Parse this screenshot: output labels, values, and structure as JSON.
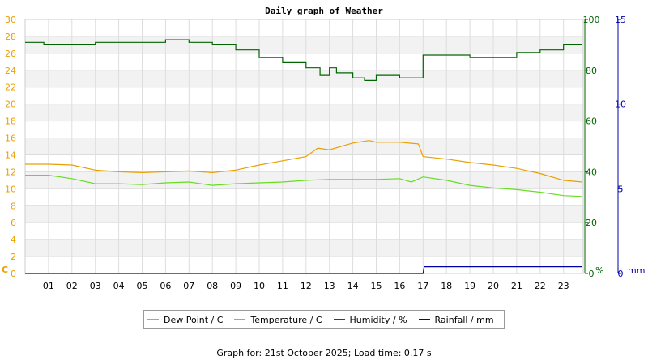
{
  "chart_data": {
    "type": "line",
    "title": "Daily graph of Weather",
    "footer": "Graph for: 21st October 2025; Load time: 0.17 s",
    "x_ticks": [
      "01",
      "02",
      "03",
      "04",
      "05",
      "06",
      "07",
      "08",
      "09",
      "10",
      "11",
      "12",
      "13",
      "14",
      "15",
      "16",
      "17",
      "18",
      "19",
      "20",
      "21",
      "22",
      "23"
    ],
    "x_range_hours": [
      0,
      23.8
    ],
    "left_axis": {
      "unit": "C",
      "range": [
        0,
        30
      ],
      "ticks": [
        "0",
        "2",
        "4",
        "6",
        "8",
        "10",
        "12",
        "14",
        "16",
        "18",
        "20",
        "22",
        "24",
        "26",
        "28",
        "30"
      ],
      "color": "#e8a000"
    },
    "right_axis_1": {
      "unit": "%",
      "range": [
        0,
        100
      ],
      "ticks": [
        "0",
        "20",
        "40",
        "60",
        "80",
        "100"
      ],
      "color": "#006400"
    },
    "right_axis_2": {
      "unit": "mm",
      "range": [
        0,
        15
      ],
      "ticks": [
        "0",
        "5",
        "10",
        "15"
      ],
      "color": "#0000aa"
    },
    "grid": true,
    "legend_position": "bottom",
    "series": [
      {
        "name": "Dew Point / C",
        "color": "#66dd22",
        "axis": "left",
        "x": [
          0,
          1,
          2,
          3,
          4,
          5,
          6,
          7,
          8,
          9,
          10,
          11,
          12,
          13,
          14,
          15,
          16,
          16.5,
          17,
          18,
          19,
          20,
          21,
          22,
          23,
          23.8
        ],
        "values": [
          11.6,
          11.6,
          11.2,
          10.6,
          10.6,
          10.5,
          10.7,
          10.8,
          10.4,
          10.6,
          10.7,
          10.8,
          11.0,
          11.1,
          11.1,
          11.1,
          11.2,
          10.8,
          11.4,
          11.0,
          10.4,
          10.1,
          9.9,
          9.6,
          9.2,
          9.1
        ]
      },
      {
        "name": "Temperature / C",
        "color": "#e8a000",
        "axis": "left",
        "x": [
          0,
          1,
          2,
          3,
          4,
          5,
          6,
          7,
          8,
          9,
          10,
          11,
          12,
          12.5,
          13,
          14,
          14.7,
          15,
          16,
          16.8,
          17,
          18,
          19,
          20,
          21,
          22,
          23,
          23.8
        ],
        "values": [
          12.9,
          12.9,
          12.8,
          12.2,
          12.0,
          11.9,
          12.0,
          12.1,
          11.9,
          12.2,
          12.8,
          13.3,
          13.8,
          14.8,
          14.6,
          15.4,
          15.7,
          15.5,
          15.5,
          15.3,
          13.8,
          13.5,
          13.1,
          12.8,
          12.4,
          11.8,
          11.0,
          10.8
        ]
      },
      {
        "name": "Humidity / %",
        "color": "#006400",
        "axis": "right_1",
        "x": [
          0,
          0.7,
          0.8,
          3,
          6,
          7,
          8,
          9,
          10,
          11,
          12,
          12.6,
          13,
          13.3,
          14,
          14.5,
          15,
          15.5,
          16,
          16.5,
          17,
          18,
          19,
          20,
          21,
          22,
          23,
          23.8
        ],
        "values": [
          91,
          91,
          90,
          91,
          92,
          91,
          90,
          88,
          85,
          83,
          81,
          78,
          81,
          79,
          77,
          76,
          78,
          78,
          77,
          77,
          86,
          86,
          85,
          85,
          87,
          88,
          90,
          90
        ]
      },
      {
        "name": "Rainfall / mm",
        "color": "#0000aa",
        "axis": "right_2",
        "x": [
          0,
          17,
          17.05,
          23.8
        ],
        "values": [
          0,
          0,
          0.4,
          0.4
        ]
      }
    ]
  }
}
